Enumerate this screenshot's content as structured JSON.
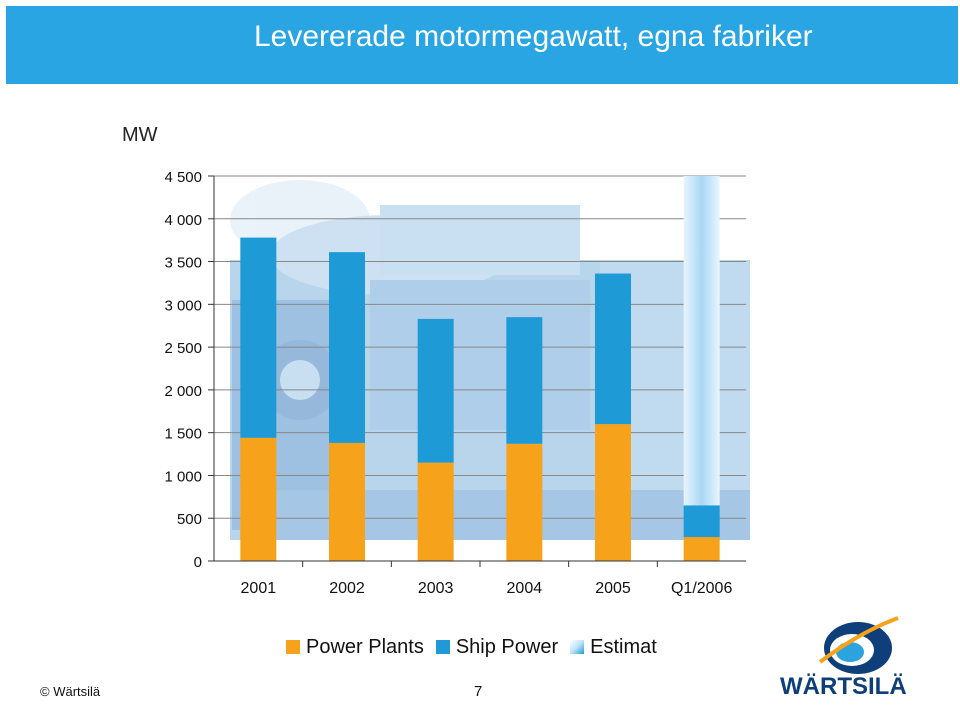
{
  "header": {
    "title": "Levererade motormegawatt, egna fabriker"
  },
  "colors": {
    "header_bg": "#29a5e3",
    "power_plants": "#f7a21b",
    "ship_power": "#1e9ad6",
    "estimate": "#bfe2f7"
  },
  "chart_data": {
    "type": "bar",
    "stacked": true,
    "unit_label": "MW",
    "categories": [
      "2001",
      "2002",
      "2003",
      "2004",
      "2005",
      "Q1/2006"
    ],
    "series": [
      {
        "name": "Power Plants",
        "values": [
          1440,
          1380,
          1150,
          1370,
          1600,
          280
        ]
      },
      {
        "name": "Ship Power",
        "values": [
          2340,
          2230,
          1680,
          1480,
          1760,
          370
        ]
      },
      {
        "name": "Estimat",
        "values": [
          0,
          0,
          0,
          0,
          0,
          3850
        ]
      }
    ],
    "ylim": [
      0,
      4500
    ],
    "yticks": [
      "0",
      "500",
      "1 000",
      "1 500",
      "2 000",
      "2 500",
      "3 000",
      "3 500",
      "4 000",
      "4 500"
    ],
    "ytick_values": [
      0,
      500,
      1000,
      1500,
      2000,
      2500,
      3000,
      3500,
      4000,
      4500
    ],
    "grid": true,
    "legend": "bottom",
    "background_image": "engine-photo"
  },
  "legend": {
    "items": [
      {
        "label": "Power Plants",
        "color": "#f7a21b"
      },
      {
        "label": "Ship Power",
        "color": "#1e9ad6"
      },
      {
        "label": "Estimat",
        "color": "#bfe2f7"
      }
    ]
  },
  "footer": {
    "copyright": "© Wärtsilä",
    "page": "7"
  },
  "logo": {
    "text": "WÄRTSILÄ",
    "icon": "wartsila-logo-icon"
  }
}
